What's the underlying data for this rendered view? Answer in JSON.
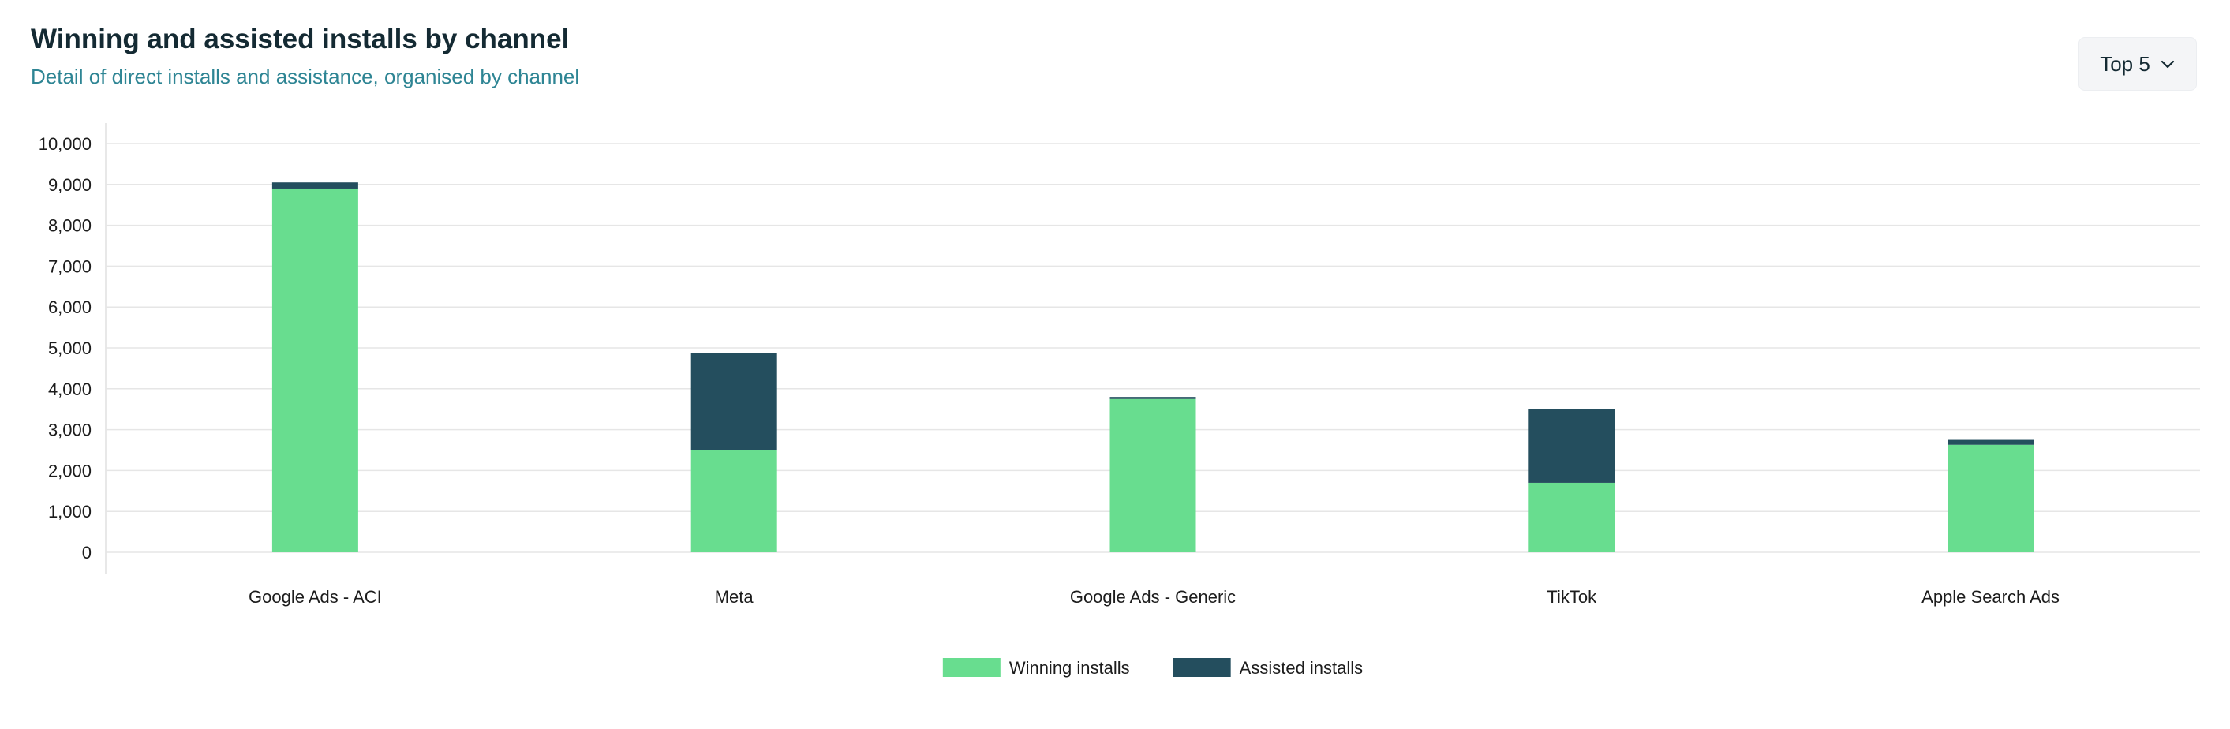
{
  "header": {
    "title": "Winning and assisted installs by channel",
    "subtitle": "Detail of direct installs and assistance, organised by channel"
  },
  "top_select": {
    "label": "Top 5",
    "icon": "chevron-down-icon"
  },
  "chart_data": {
    "type": "bar",
    "stacked": true,
    "categories": [
      "Google Ads - ACI",
      "Meta",
      "Google Ads - Generic",
      "TikTok",
      "Apple Search Ads"
    ],
    "series": [
      {
        "name": "Winning installs",
        "color": "#68dd8f",
        "values": [
          8900,
          2500,
          3750,
          1700,
          2630
        ]
      },
      {
        "name": "Assisted installs",
        "color": "#244e5e",
        "values": [
          150,
          2380,
          50,
          1800,
          120
        ]
      }
    ],
    "ylim": [
      0,
      10000
    ],
    "yticks": [
      0,
      1000,
      2000,
      3000,
      4000,
      5000,
      6000,
      7000,
      8000,
      9000,
      10000
    ],
    "ytick_labels": [
      "0",
      "1,000",
      "2,000",
      "3,000",
      "4,000",
      "5,000",
      "6,000",
      "7,000",
      "8,000",
      "9,000",
      "10,000"
    ],
    "grid": true,
    "legend": "bottom-center",
    "xlabel": "",
    "ylabel": ""
  }
}
